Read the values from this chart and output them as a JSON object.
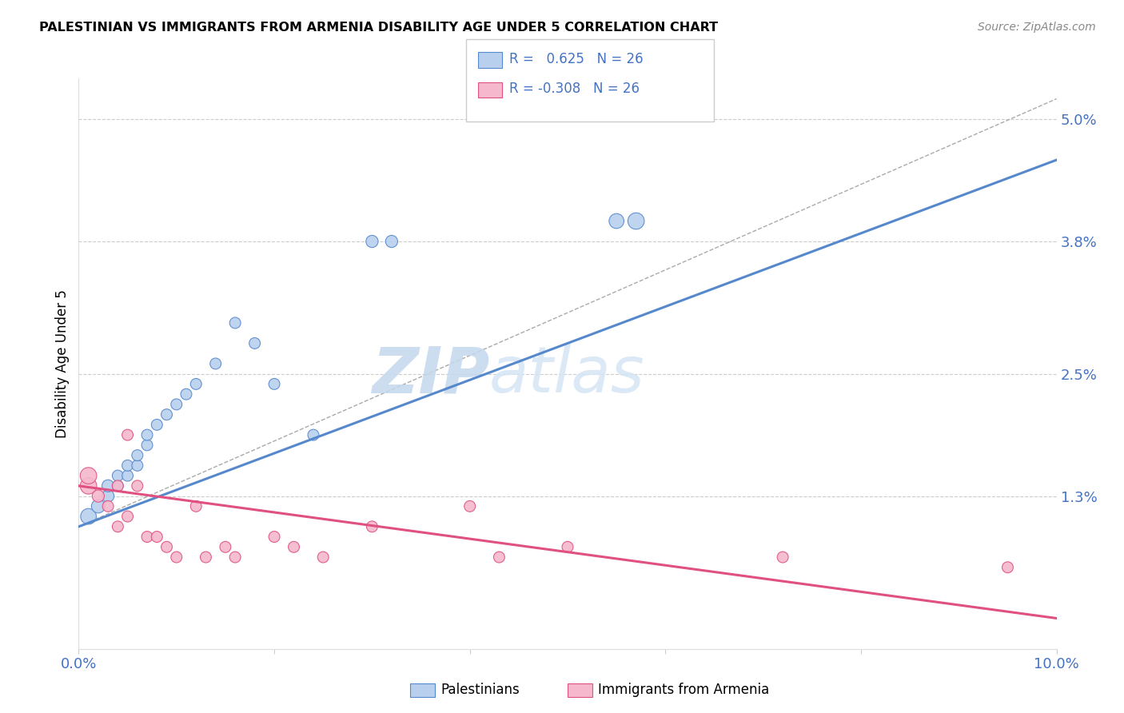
{
  "title": "PALESTINIAN VS IMMIGRANTS FROM ARMENIA DISABILITY AGE UNDER 5 CORRELATION CHART",
  "source": "Source: ZipAtlas.com",
  "ylabel": "Disability Age Under 5",
  "yticks": [
    0.0,
    0.013,
    0.025,
    0.038,
    0.05
  ],
  "ytick_labels": [
    "",
    "1.3%",
    "2.5%",
    "3.8%",
    "5.0%"
  ],
  "xlim": [
    0.0,
    0.1
  ],
  "ylim": [
    -0.002,
    0.054
  ],
  "blue_r": "0.625",
  "blue_n": "26",
  "pink_r": "-0.308",
  "pink_n": "26",
  "blue_color": "#b8d0ee",
  "pink_color": "#f5b8cc",
  "blue_line_color": "#5588cc",
  "pink_line_color": "#e05080",
  "ref_line_color": "#cccccc",
  "watermark_zip": "ZIP",
  "watermark_atlas": "atlas",
  "legend_label_blue": "Palestinians",
  "legend_label_pink": "Immigrants from Armenia",
  "blue_x": [
    0.001,
    0.002,
    0.003,
    0.003,
    0.004,
    0.004,
    0.005,
    0.005,
    0.006,
    0.006,
    0.007,
    0.007,
    0.008,
    0.009,
    0.01,
    0.011,
    0.012,
    0.014,
    0.016,
    0.018,
    0.02,
    0.024,
    0.03,
    0.032,
    0.055,
    0.057
  ],
  "blue_y": [
    0.011,
    0.012,
    0.013,
    0.014,
    0.014,
    0.015,
    0.015,
    0.016,
    0.016,
    0.017,
    0.018,
    0.019,
    0.02,
    0.021,
    0.022,
    0.023,
    0.024,
    0.026,
    0.03,
    0.028,
    0.024,
    0.019,
    0.038,
    0.038,
    0.04,
    0.04
  ],
  "pink_x": [
    0.001,
    0.001,
    0.002,
    0.003,
    0.004,
    0.004,
    0.005,
    0.005,
    0.006,
    0.007,
    0.008,
    0.009,
    0.01,
    0.012,
    0.013,
    0.015,
    0.016,
    0.02,
    0.022,
    0.025,
    0.03,
    0.04,
    0.043,
    0.05,
    0.072,
    0.095
  ],
  "pink_y": [
    0.014,
    0.015,
    0.013,
    0.012,
    0.01,
    0.014,
    0.011,
    0.019,
    0.014,
    0.009,
    0.009,
    0.008,
    0.007,
    0.012,
    0.007,
    0.008,
    0.007,
    0.009,
    0.008,
    0.007,
    0.01,
    0.012,
    0.007,
    0.008,
    0.007,
    0.006
  ],
  "blue_scatter_sizes": [
    200,
    150,
    120,
    120,
    100,
    100,
    100,
    100,
    100,
    100,
    100,
    100,
    100,
    100,
    100,
    100,
    100,
    100,
    100,
    100,
    100,
    100,
    120,
    120,
    180,
    220
  ],
  "pink_scatter_sizes": [
    220,
    220,
    120,
    100,
    100,
    100,
    100,
    100,
    100,
    100,
    100,
    100,
    100,
    100,
    100,
    100,
    100,
    100,
    100,
    100,
    100,
    100,
    100,
    100,
    100,
    100
  ],
  "blue_trend_x": [
    0.0,
    0.1
  ],
  "blue_trend_y": [
    0.01,
    0.046
  ],
  "pink_trend_x": [
    0.0,
    0.1
  ],
  "pink_trend_y": [
    0.014,
    0.001
  ]
}
